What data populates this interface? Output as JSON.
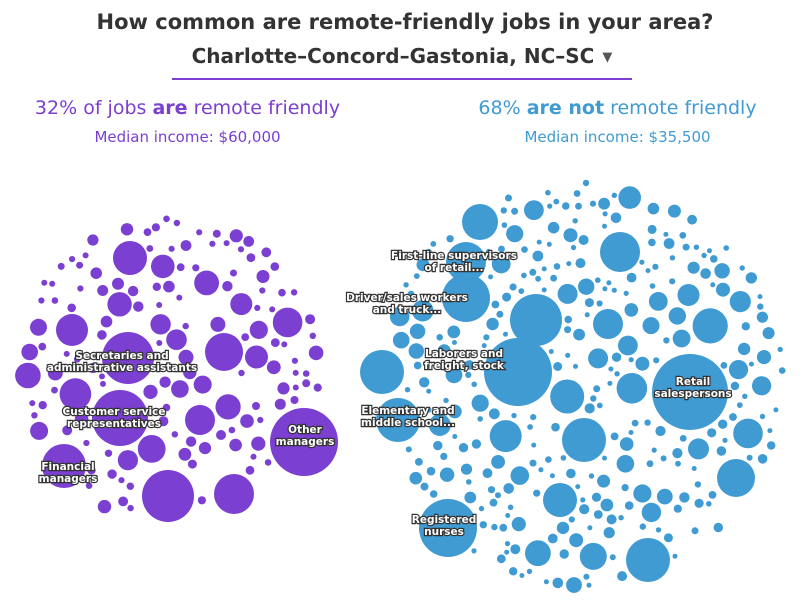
{
  "title": "How common are remote-friendly jobs in your area?",
  "location": "Charlotte–Concord–Gastonia, NC–SC",
  "dropdown_icon": "caret-down-icon",
  "remote": {
    "pct": "32%",
    "of_jobs": " of jobs ",
    "verb": "are",
    "tail": " remote friendly",
    "median_income": "Median income: $60,000",
    "color": "#7b3fd1"
  },
  "not_remote": {
    "pct": "68%",
    "verb": "are not",
    "tail": " remote friendly",
    "median_income": "Median income: $35,500",
    "color": "#3f9bd2"
  },
  "chart_data": {
    "type": "bubble",
    "groups": [
      {
        "name": "32% of jobs are remote friendly",
        "share_pct": 32,
        "median_income": 60000,
        "labeled_occupations": [
          [
            "Secretaries and",
            "administrative assistants"
          ],
          [
            "Customer service",
            "representatives"
          ],
          [
            "Financial",
            "managers"
          ],
          [
            "Other",
            "managers"
          ]
        ]
      },
      {
        "name": "68% are not remote friendly",
        "share_pct": 68,
        "median_income": 35500,
        "labeled_occupations": [
          [
            "First-line supervisors",
            "of retail..."
          ],
          [
            "Driver/sales workers",
            "and truck..."
          ],
          [
            "Laborers and",
            "freight, stock"
          ],
          [
            "Elementary and",
            "middle school..."
          ],
          [
            "Retail",
            "salespersons"
          ],
          [
            "Registered",
            "nurses"
          ]
        ]
      }
    ]
  }
}
